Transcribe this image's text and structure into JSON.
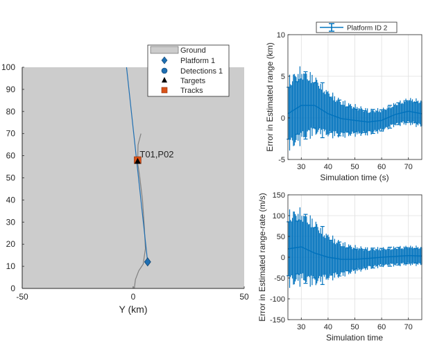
{
  "colors": {
    "ground": "#cccccc",
    "axis": "#262626",
    "grid": "#dfdfdf",
    "platform": "#1f6fb2",
    "error": "#0072bd",
    "track": "#d95319",
    "truth": "#808080"
  },
  "chart_data": [
    {
      "type": "scatter",
      "name": "theater-plot",
      "title": "",
      "xlabel": "Y (km)",
      "ylabel": "",
      "xlim": [
        -50,
        50
      ],
      "ylim": [
        0,
        100
      ],
      "xticks": [
        -50,
        0,
        50
      ],
      "yticks": [
        0,
        10,
        20,
        30,
        40,
        50,
        60,
        70,
        80,
        90,
        100
      ],
      "legend": {
        "position": "top-right",
        "entries": [
          {
            "label": "Ground",
            "marker": "patch"
          },
          {
            "label": "Platform 1",
            "marker": "diamond"
          },
          {
            "label": "Detections 1",
            "marker": "circle"
          },
          {
            "label": "Targets",
            "marker": "triangle"
          },
          {
            "label": "Tracks",
            "marker": "square"
          }
        ]
      },
      "platform_trajectory": {
        "x": [
          -3,
          6.5
        ],
        "y": [
          100,
          12
        ]
      },
      "platform_position": {
        "x": 6.5,
        "y": 12
      },
      "target_trajectory": {
        "x": [
          0.5,
          1.0,
          2.5,
          4.5,
          5.5,
          5.0,
          4.2,
          3.0,
          2.0,
          2.2,
          3.5
        ],
        "y": [
          0,
          4,
          8,
          11,
          18,
          28,
          40,
          50,
          57,
          65,
          70
        ]
      },
      "target_position": {
        "x": 2.0,
        "y": 57.5
      },
      "track_position": {
        "x": 2.0,
        "y": 58.0
      },
      "annotations": [
        {
          "text": "T01,P02",
          "x": 2.0,
          "y": 58.0
        }
      ]
    },
    {
      "type": "line",
      "name": "range-error",
      "title": "",
      "xlabel": "Simulation time (s)",
      "ylabel": "Error in Estimated range (km)",
      "xlim": [
        25,
        75
      ],
      "ylim": [
        -5,
        10
      ],
      "xticks": [
        30,
        40,
        50,
        60,
        70
      ],
      "yticks": [
        -5,
        0,
        5,
        10
      ],
      "grid": true,
      "legend": {
        "position": "top",
        "entries": [
          {
            "label": "Platform ID 2",
            "marker": "errorbar"
          }
        ]
      },
      "series": [
        {
          "name": "Platform ID 2",
          "x": [
            25,
            30,
            35,
            40,
            45,
            50,
            55,
            60,
            65,
            70,
            75
          ],
          "y": [
            0.5,
            1.5,
            1.5,
            0.5,
            -0.1,
            -0.3,
            -0.5,
            -0.3,
            0.4,
            0.8,
            0.5
          ],
          "error": [
            4.8,
            4.8,
            3.8,
            3.0,
            2.4,
            2.0,
            1.7,
            1.5,
            1.5,
            1.7,
            1.8
          ]
        }
      ]
    },
    {
      "type": "line",
      "name": "range-rate-error",
      "title": "",
      "xlabel": "Simulation time",
      "ylabel": "Error in Estimated range-rate (m/s)",
      "xlim": [
        25,
        75
      ],
      "ylim": [
        -150,
        150
      ],
      "xticks": [
        30,
        40,
        50,
        60,
        70
      ],
      "yticks": [
        -150,
        -100,
        -50,
        0,
        50,
        100,
        150
      ],
      "grid": true,
      "series": [
        {
          "name": "Platform ID 2",
          "x": [
            25,
            30,
            35,
            40,
            45,
            50,
            55,
            60,
            65,
            70,
            75
          ],
          "y": [
            20,
            25,
            10,
            0,
            -5,
            -5,
            -3,
            0,
            2,
            4,
            3
          ],
          "error": [
            100,
            95,
            85,
            60,
            45,
            35,
            28,
            25,
            25,
            25,
            25
          ]
        }
      ]
    }
  ]
}
